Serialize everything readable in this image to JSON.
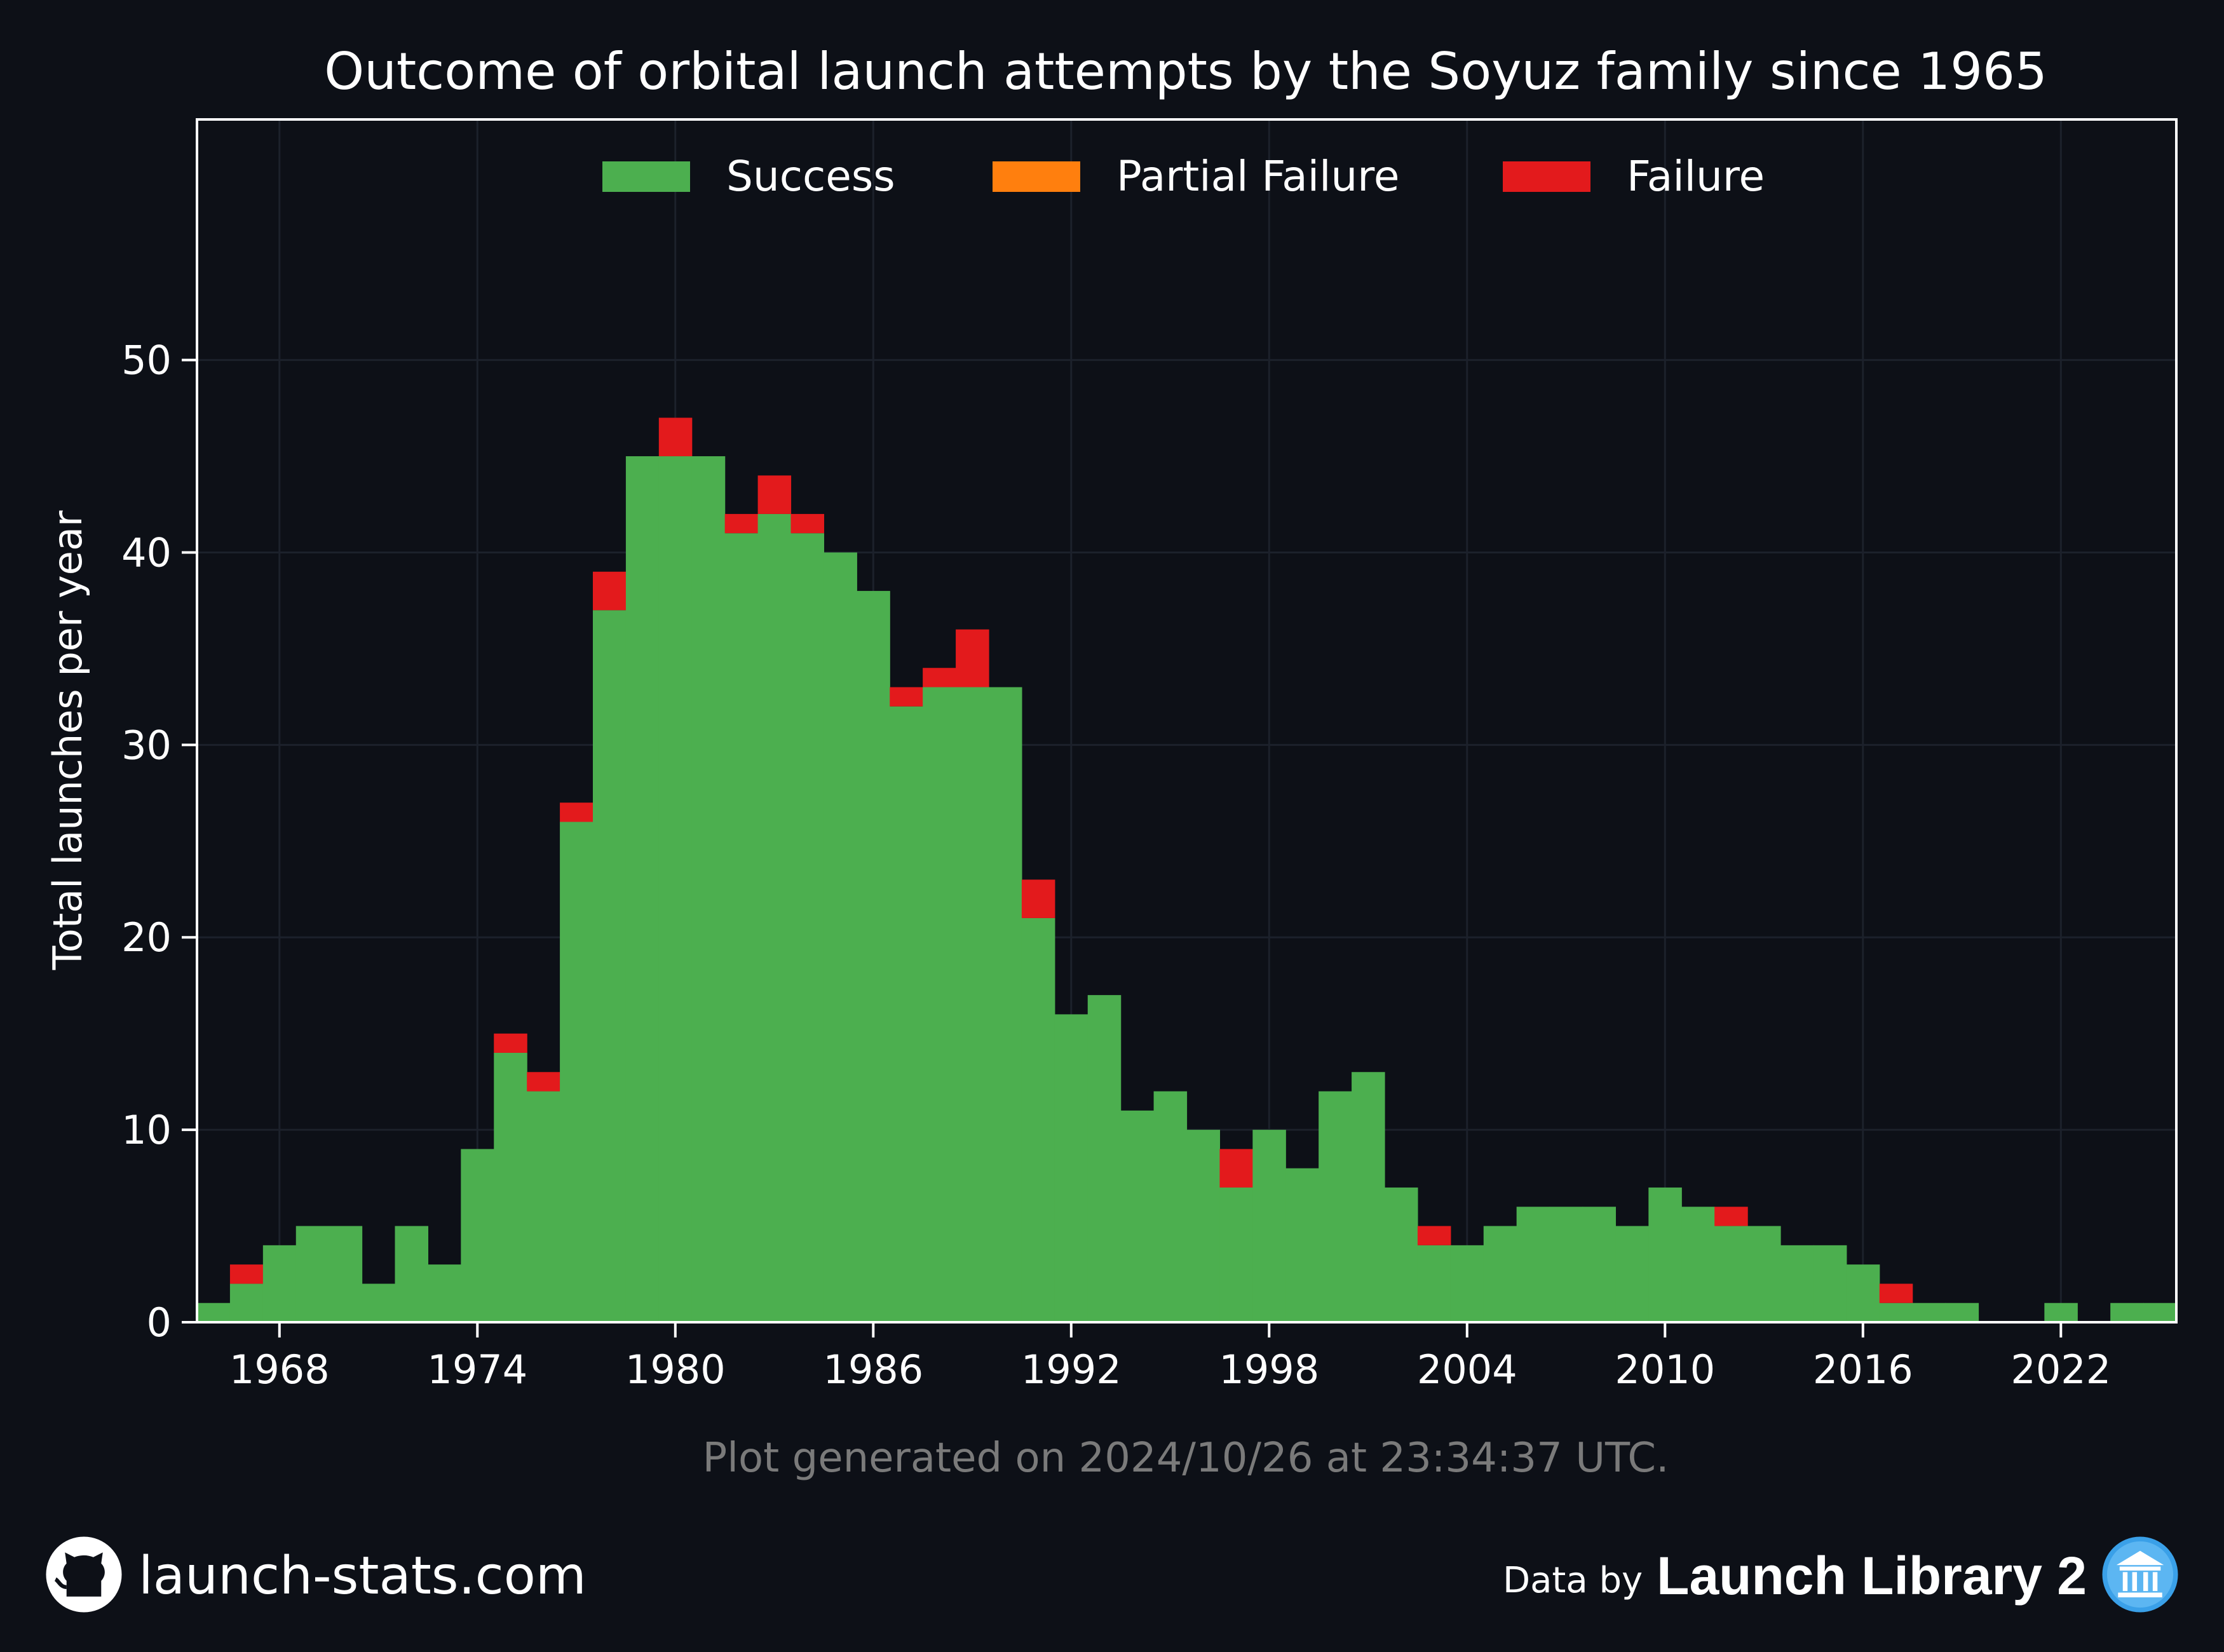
{
  "chart_data": {
    "type": "bar",
    "stacked": true,
    "title": "Outcome of orbital launch attempts by the Soyuz family since 1965",
    "ylabel": "Total launches per year",
    "xlabel": "",
    "x": [
      1966,
      1967,
      1968,
      1969,
      1970,
      1971,
      1972,
      1973,
      1974,
      1975,
      1976,
      1977,
      1978,
      1979,
      1980,
      1981,
      1982,
      1983,
      1984,
      1985,
      1986,
      1987,
      1988,
      1989,
      1990,
      1991,
      1992,
      1993,
      1994,
      1995,
      1996,
      1997,
      1998,
      1999,
      2000,
      2001,
      2002,
      2003,
      2004,
      2005,
      2006,
      2007,
      2008,
      2009,
      2010,
      2011,
      2012,
      2013,
      2014,
      2015,
      2016,
      2017,
      2018,
      2019,
      2020,
      2021,
      2022,
      2023,
      2024
    ],
    "series": [
      {
        "name": "Success",
        "color": "#4caf4f",
        "values": [
          1,
          2,
          4,
          5,
          5,
          2,
          5,
          3,
          9,
          14,
          12,
          26,
          37,
          45,
          45,
          45,
          41,
          42,
          41,
          40,
          38,
          32,
          33,
          33,
          33,
          21,
          16,
          17,
          11,
          12,
          10,
          7,
          10,
          8,
          12,
          13,
          7,
          4,
          4,
          5,
          6,
          6,
          6,
          5,
          7,
          6,
          5,
          5,
          4,
          4,
          3,
          1,
          1,
          1,
          0,
          0,
          1,
          0,
          1
        ]
      },
      {
        "name": "Partial Failure",
        "color": "#ff7f0e",
        "values": [
          0,
          0,
          0,
          0,
          0,
          0,
          0,
          0,
          0,
          0,
          0,
          0,
          0,
          0,
          0,
          0,
          0,
          0,
          0,
          0,
          0,
          0,
          0,
          0,
          0,
          0,
          0,
          0,
          0,
          0,
          0,
          0,
          0,
          0,
          0,
          0,
          0,
          0,
          0,
          0,
          0,
          0,
          0,
          0,
          0,
          0,
          0,
          0,
          0,
          0,
          0,
          0,
          0,
          0,
          0,
          0,
          0,
          0,
          0
        ]
      },
      {
        "name": "Failure",
        "color": "#e31a1c",
        "values": [
          0,
          1,
          0,
          0,
          0,
          0,
          0,
          0,
          0,
          1,
          1,
          1,
          2,
          0,
          2,
          0,
          1,
          2,
          1,
          0,
          0,
          1,
          1,
          3,
          0,
          2,
          0,
          0,
          0,
          0,
          0,
          2,
          0,
          0,
          0,
          0,
          0,
          1,
          0,
          0,
          0,
          0,
          0,
          0,
          0,
          0,
          1,
          0,
          0,
          0,
          0,
          1,
          0,
          0,
          0,
          0,
          0,
          0,
          0
        ]
      }
    ],
    "extra_final_bar": {
      "x": 2025,
      "success": 1
    },
    "xticks": [
      1968,
      1974,
      1980,
      1986,
      1992,
      1998,
      2004,
      2010,
      2016,
      2022
    ],
    "yticks": [
      0,
      10,
      20,
      30,
      40,
      50
    ],
    "xlim": [
      1965.5,
      2025.5
    ],
    "ylim": [
      0,
      62.5
    ],
    "grid": true,
    "legend_position": "top-center"
  },
  "note": "Plot generated on 2024/10/26 at 23:34:37 UTC.",
  "footer": {
    "site": "launch-stats.com",
    "site_icon": "github-icon",
    "data_by_prefix": "Data by",
    "data_by_name": "Launch Library 2",
    "data_by_icon": "launch-library-icon"
  },
  "colors": {
    "background": "#0d1017",
    "axes": "#ffffff",
    "grid": "#1c212b",
    "note": "#7a7a7a"
  }
}
